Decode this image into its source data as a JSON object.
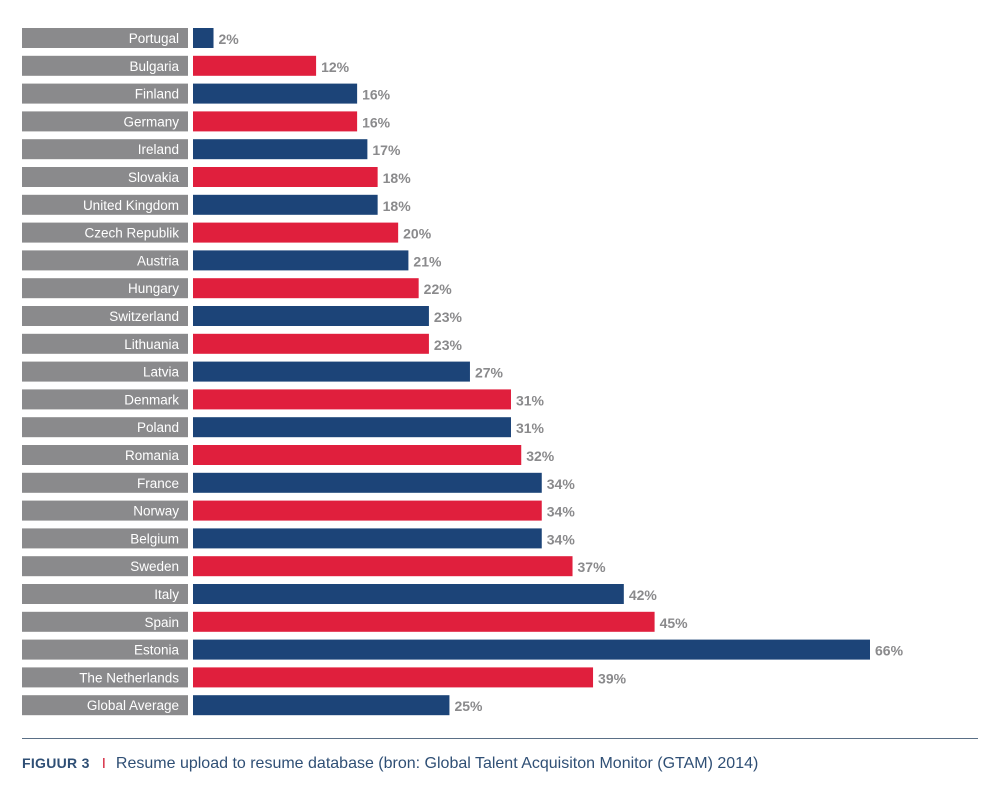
{
  "chart_data": {
    "type": "bar",
    "orientation": "horizontal",
    "categories": [
      "Portugal",
      "Bulgaria",
      "Finland",
      "Germany",
      "Ireland",
      "Slovakia",
      "United Kingdom",
      "Czech Republik",
      "Austria",
      "Hungary",
      "Switzerland",
      "Lithuania",
      "Latvia",
      "Denmark",
      "Poland",
      "Romania",
      "France",
      "Norway",
      "Belgium",
      "Sweden",
      "Italy",
      "Spain",
      "Estonia",
      "The Netherlands",
      "Global Average"
    ],
    "values": [
      2,
      12,
      16,
      16,
      17,
      18,
      18,
      20,
      21,
      22,
      23,
      23,
      27,
      31,
      31,
      32,
      34,
      34,
      34,
      37,
      42,
      45,
      66,
      39,
      25
    ],
    "value_labels": [
      "2%",
      "12%",
      "16%",
      "16%",
      "17%",
      "18%",
      "18%",
      "20%",
      "21%",
      "22%",
      "23%",
      "23%",
      "27%",
      "31%",
      "31%",
      "32%",
      "34%",
      "34%",
      "34%",
      "37%",
      "42%",
      "45%",
      "66%",
      "39%",
      "25%"
    ],
    "bar_colors": [
      "#1c4478",
      "#e01f3d"
    ],
    "xlim": [
      0,
      66
    ],
    "grid": false,
    "legend": "none"
  },
  "caption": {
    "figure_label": "FIGUUR 3",
    "separator": "I",
    "text": "Resume upload to resume database (bron: Global Talent Acquisiton Monitor (GTAM) 2014)"
  },
  "colors": {
    "label_box": "#8a8a8c",
    "label_text": "#ffffff",
    "value_text": "#8a8a8c",
    "caption_text": "#2f4f75",
    "caption_separator": "#d4223a"
  }
}
